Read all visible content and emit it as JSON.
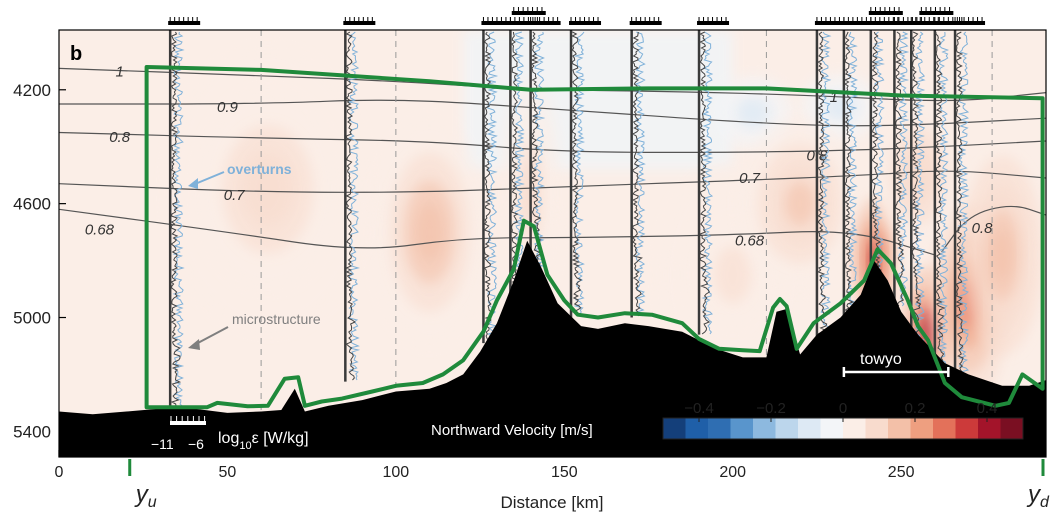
{
  "chart_data": {
    "type": "heatmap",
    "panel_label": "b",
    "xlabel": "Distance [km]",
    "xlim": [
      0,
      293
    ],
    "ylim_depth": [
      3990,
      5490
    ],
    "x_ticks": [
      0,
      50,
      100,
      150,
      200,
      250
    ],
    "y_ticks": [
      4200,
      4600,
      5000,
      5400
    ],
    "colorbar": {
      "label": "Northward Velocity [m/s]",
      "range": [
        -0.5,
        0.5
      ],
      "ticks": [
        -0.4,
        -0.2,
        0,
        0.2,
        0.4
      ],
      "tick_labels": [
        "−0.4",
        "−0.2",
        "0",
        "0.2",
        "0.4"
      ],
      "negative_color": "#1f5fa8",
      "positive_color": "#a3142a"
    },
    "velocity_blobs": [
      {
        "x": 110,
        "z": 4700,
        "v": 0.16,
        "rx": 17,
        "rz": 400
      },
      {
        "x": 62,
        "z": 4550,
        "v": 0.09,
        "rx": 30,
        "rz": 500
      },
      {
        "x": 140,
        "z": 4560,
        "v": 0.11,
        "rx": 9,
        "rz": 400
      },
      {
        "x": 200,
        "z": 4850,
        "v": 0.07,
        "rx": 22,
        "rz": 400
      },
      {
        "x": 206,
        "z": 4280,
        "v": -0.08,
        "rx": 12,
        "rz": 130
      },
      {
        "x": 232,
        "z": 4260,
        "v": -0.1,
        "rx": 12,
        "rz": 120
      },
      {
        "x": 220,
        "z": 4600,
        "v": 0.15,
        "rx": 18,
        "rz": 300
      },
      {
        "x": 242,
        "z": 4800,
        "v": 0.36,
        "rx": 7,
        "rz": 220
      },
      {
        "x": 258,
        "z": 5050,
        "v": 0.42,
        "rx": 8,
        "rz": 230
      },
      {
        "x": 270,
        "z": 4950,
        "v": 0.28,
        "rx": 12,
        "rz": 350
      },
      {
        "x": 280,
        "z": 4780,
        "v": 0.18,
        "rx": 12,
        "rz": 350
      },
      {
        "x": 255,
        "z": 4500,
        "v": 0.12,
        "rx": 12,
        "rz": 250
      }
    ],
    "contours": [
      {
        "label": "1",
        "points": [
          [
            0,
            4125
          ],
          [
            60,
            4150
          ],
          [
            100,
            4170
          ],
          [
            140,
            4200
          ],
          [
            180,
            4205
          ],
          [
            225,
            4220
          ],
          [
            265,
            4245
          ],
          [
            293,
            4210
          ]
        ],
        "labels_at": [
          [
            18,
            4135
          ],
          [
            230,
            4225
          ]
        ]
      },
      {
        "label": "0.9",
        "points": [
          [
            0,
            4250
          ],
          [
            60,
            4250
          ],
          [
            100,
            4230
          ],
          [
            150,
            4270
          ],
          [
            210,
            4320
          ],
          [
            245,
            4330
          ],
          [
            293,
            4300
          ]
        ],
        "labels_at": [
          [
            50,
            4260
          ]
        ]
      },
      {
        "label": "0.8",
        "points": [
          [
            0,
            4350
          ],
          [
            60,
            4370
          ],
          [
            110,
            4380
          ],
          [
            150,
            4420
          ],
          [
            205,
            4420
          ],
          [
            245,
            4410
          ],
          [
            293,
            4380
          ]
        ],
        "labels_at": [
          [
            18,
            4365
          ],
          [
            225,
            4430
          ]
        ]
      },
      {
        "label": "0.7",
        "points": [
          [
            0,
            4530
          ],
          [
            60,
            4560
          ],
          [
            110,
            4560
          ],
          [
            150,
            4540
          ],
          [
            200,
            4520
          ],
          [
            240,
            4500
          ],
          [
            265,
            4480
          ],
          [
            293,
            4510
          ]
        ],
        "labels_at": [
          [
            52,
            4570
          ],
          [
            205,
            4510
          ]
        ]
      },
      {
        "label": "0.68",
        "points": [
          [
            0,
            4620
          ],
          [
            50,
            4700
          ],
          [
            90,
            4770
          ],
          [
            120,
            4720
          ],
          [
            150,
            4720
          ],
          [
            200,
            4710
          ],
          [
            235,
            4690
          ],
          [
            260,
            4780
          ]
        ],
        "labels_at": [
          [
            12,
            4690
          ],
          [
            205,
            4730
          ]
        ]
      },
      {
        "label": "0.8",
        "points": [
          [
            262,
            4770
          ],
          [
            270,
            4640
          ],
          [
            283,
            4600
          ],
          [
            293,
            4640
          ]
        ],
        "labels_at": [
          [
            274,
            4685
          ]
        ]
      }
    ],
    "bathymetry_depth": [
      [
        0,
        5330
      ],
      [
        10,
        5340
      ],
      [
        20,
        5330
      ],
      [
        30,
        5320
      ],
      [
        40,
        5320
      ],
      [
        50,
        5335
      ],
      [
        60,
        5330
      ],
      [
        66,
        5325
      ],
      [
        70,
        5250
      ],
      [
        73,
        5330
      ],
      [
        80,
        5310
      ],
      [
        90,
        5290
      ],
      [
        100,
        5260
      ],
      [
        110,
        5250
      ],
      [
        115,
        5230
      ],
      [
        120,
        5200
      ],
      [
        125,
        5120
      ],
      [
        130,
        5020
      ],
      [
        135,
        4870
      ],
      [
        139,
        4730
      ],
      [
        143,
        4820
      ],
      [
        148,
        4950
      ],
      [
        155,
        5030
      ],
      [
        160,
        5040
      ],
      [
        168,
        5020
      ],
      [
        175,
        5030
      ],
      [
        185,
        5050
      ],
      [
        195,
        5110
      ],
      [
        203,
        5140
      ],
      [
        210,
        5140
      ],
      [
        213,
        4980
      ],
      [
        216,
        4970
      ],
      [
        220,
        5130
      ],
      [
        225,
        5060
      ],
      [
        232,
        5000
      ],
      [
        238,
        4920
      ],
      [
        242,
        4800
      ],
      [
        246,
        4870
      ],
      [
        250,
        4980
      ],
      [
        255,
        5060
      ],
      [
        263,
        5160
      ],
      [
        270,
        5200
      ],
      [
        280,
        5240
      ],
      [
        288,
        5240
      ],
      [
        293,
        5220
      ]
    ],
    "study_box_depth": [
      [
        26,
        4120
      ],
      [
        26,
        5315
      ],
      [
        44,
        5315
      ],
      [
        47,
        5300
      ],
      [
        56,
        5312
      ],
      [
        62,
        5310
      ],
      [
        67,
        5215
      ],
      [
        71,
        5210
      ],
      [
        73,
        5310
      ],
      [
        78,
        5295
      ],
      [
        84,
        5285
      ],
      [
        93,
        5260
      ],
      [
        100,
        5240
      ],
      [
        108,
        5230
      ],
      [
        114,
        5200
      ],
      [
        120,
        5150
      ],
      [
        126,
        5050
      ],
      [
        130,
        4940
      ],
      [
        135,
        4830
      ],
      [
        138,
        4660
      ],
      [
        141,
        4680
      ],
      [
        145,
        4850
      ],
      [
        150,
        4940
      ],
      [
        154,
        4990
      ],
      [
        160,
        5000
      ],
      [
        168,
        4985
      ],
      [
        176,
        4990
      ],
      [
        185,
        5020
      ],
      [
        190,
        5075
      ],
      [
        196,
        5110
      ],
      [
        203,
        5115
      ],
      [
        208,
        5118
      ],
      [
        212,
        4965
      ],
      [
        214,
        4935
      ],
      [
        216,
        4960
      ],
      [
        219,
        5110
      ],
      [
        224,
        5020
      ],
      [
        232,
        4950
      ],
      [
        239,
        4870
      ],
      [
        243,
        4760
      ],
      [
        247,
        4810
      ],
      [
        252,
        4940
      ],
      [
        255,
        5030
      ],
      [
        258,
        5080
      ],
      [
        263,
        5230
      ],
      [
        268,
        5280
      ],
      [
        278,
        5310
      ],
      [
        282,
        5300
      ],
      [
        286,
        5200
      ],
      [
        292,
        5250
      ],
      [
        292,
        4230
      ],
      [
        250,
        4220
      ],
      [
        210,
        4195
      ],
      [
        175,
        4195
      ],
      [
        140,
        4200
      ],
      [
        110,
        4170
      ],
      [
        60,
        4130
      ],
      [
        26,
        4120
      ]
    ],
    "profiles_km": [
      33,
      85,
      126,
      134,
      140,
      152,
      170,
      190,
      225,
      233,
      241,
      248,
      253,
      260,
      266
    ],
    "profile_bottom_depth": [
      5315,
      5225,
      5090,
      5150,
      4860,
      5000,
      5000,
      5060,
      5110,
      5080,
      4920,
      4960,
      5100,
      5170,
      5210
    ],
    "microstructure_scale_ticks": [
      "−11",
      "−6"
    ],
    "microstructure_label": "log",
    "microstructure_label_sub": "10",
    "microstructure_label_rest": "ε [W/kg]",
    "dashed_lines_km": [
      60,
      100,
      210,
      277
    ],
    "annotations": {
      "overturns": "overturns",
      "microstructure": "microstructure",
      "towyo": "towyo"
    },
    "towyo_km": [
      233,
      264
    ],
    "markers": {
      "yu_km": 21,
      "yd_km": 293
    },
    "marker_labels": {
      "yu_main": "y",
      "yu_sub": "u",
      "yd_main": "y",
      "yd_sub": "d"
    },
    "colors": {
      "box": "#1f8a3b",
      "overturn": "#7fb1d9",
      "annot_gray": "#7f7f7f"
    }
  }
}
